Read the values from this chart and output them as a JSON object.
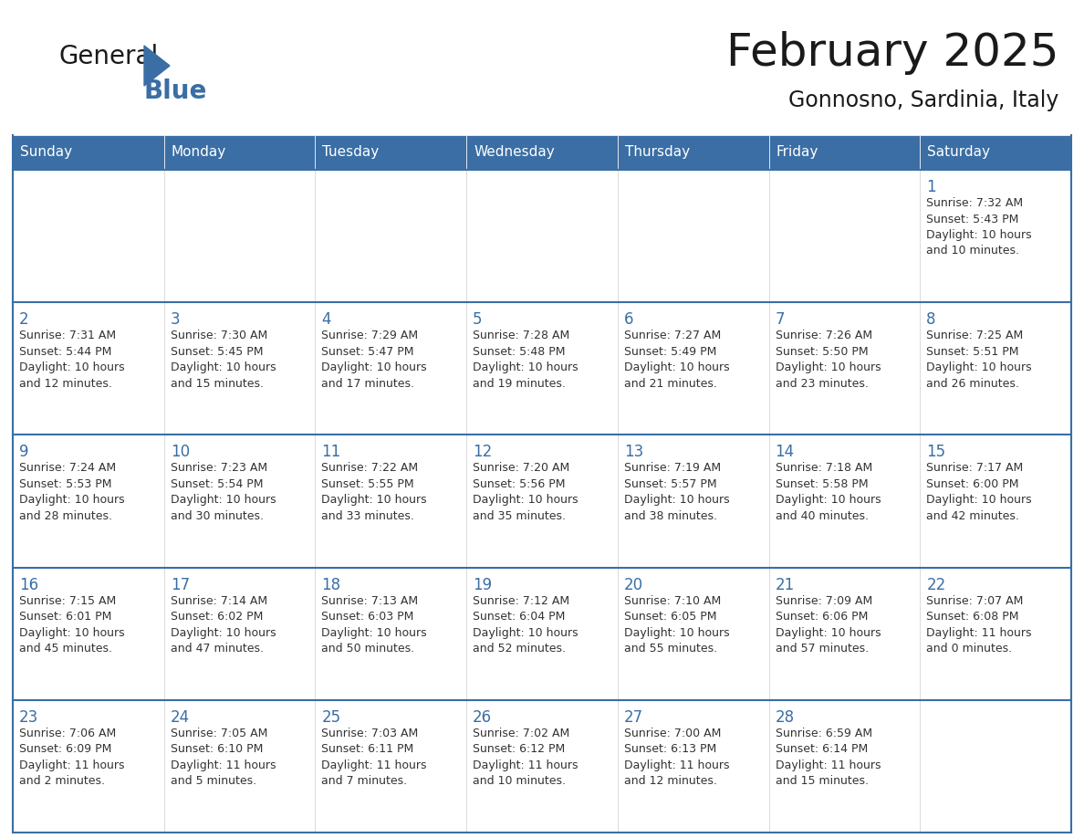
{
  "title": "February 2025",
  "subtitle": "Gonnosno, Sardinia, Italy",
  "header_bg": "#3A6EA5",
  "header_text_color": "#FFFFFF",
  "cell_bg": "#FFFFFF",
  "border_color": "#3A6EA5",
  "separator_color": "#3A6EA5",
  "outer_border_color": "#3A6EA5",
  "day_names": [
    "Sunday",
    "Monday",
    "Tuesday",
    "Wednesday",
    "Thursday",
    "Friday",
    "Saturday"
  ],
  "title_color": "#1a1a1a",
  "subtitle_color": "#1a1a1a",
  "day_number_color": "#3A6EA5",
  "info_color": "#333333",
  "logo_general_color": "#1a1a1a",
  "logo_blue_color": "#3A6EA5",
  "logo_triangle_color": "#3A6EA5",
  "weeks": [
    [
      {
        "day": "",
        "info": ""
      },
      {
        "day": "",
        "info": ""
      },
      {
        "day": "",
        "info": ""
      },
      {
        "day": "",
        "info": ""
      },
      {
        "day": "",
        "info": ""
      },
      {
        "day": "",
        "info": ""
      },
      {
        "day": "1",
        "info": "Sunrise: 7:32 AM\nSunset: 5:43 PM\nDaylight: 10 hours\nand 10 minutes."
      }
    ],
    [
      {
        "day": "2",
        "info": "Sunrise: 7:31 AM\nSunset: 5:44 PM\nDaylight: 10 hours\nand 12 minutes."
      },
      {
        "day": "3",
        "info": "Sunrise: 7:30 AM\nSunset: 5:45 PM\nDaylight: 10 hours\nand 15 minutes."
      },
      {
        "day": "4",
        "info": "Sunrise: 7:29 AM\nSunset: 5:47 PM\nDaylight: 10 hours\nand 17 minutes."
      },
      {
        "day": "5",
        "info": "Sunrise: 7:28 AM\nSunset: 5:48 PM\nDaylight: 10 hours\nand 19 minutes."
      },
      {
        "day": "6",
        "info": "Sunrise: 7:27 AM\nSunset: 5:49 PM\nDaylight: 10 hours\nand 21 minutes."
      },
      {
        "day": "7",
        "info": "Sunrise: 7:26 AM\nSunset: 5:50 PM\nDaylight: 10 hours\nand 23 minutes."
      },
      {
        "day": "8",
        "info": "Sunrise: 7:25 AM\nSunset: 5:51 PM\nDaylight: 10 hours\nand 26 minutes."
      }
    ],
    [
      {
        "day": "9",
        "info": "Sunrise: 7:24 AM\nSunset: 5:53 PM\nDaylight: 10 hours\nand 28 minutes."
      },
      {
        "day": "10",
        "info": "Sunrise: 7:23 AM\nSunset: 5:54 PM\nDaylight: 10 hours\nand 30 minutes."
      },
      {
        "day": "11",
        "info": "Sunrise: 7:22 AM\nSunset: 5:55 PM\nDaylight: 10 hours\nand 33 minutes."
      },
      {
        "day": "12",
        "info": "Sunrise: 7:20 AM\nSunset: 5:56 PM\nDaylight: 10 hours\nand 35 minutes."
      },
      {
        "day": "13",
        "info": "Sunrise: 7:19 AM\nSunset: 5:57 PM\nDaylight: 10 hours\nand 38 minutes."
      },
      {
        "day": "14",
        "info": "Sunrise: 7:18 AM\nSunset: 5:58 PM\nDaylight: 10 hours\nand 40 minutes."
      },
      {
        "day": "15",
        "info": "Sunrise: 7:17 AM\nSunset: 6:00 PM\nDaylight: 10 hours\nand 42 minutes."
      }
    ],
    [
      {
        "day": "16",
        "info": "Sunrise: 7:15 AM\nSunset: 6:01 PM\nDaylight: 10 hours\nand 45 minutes."
      },
      {
        "day": "17",
        "info": "Sunrise: 7:14 AM\nSunset: 6:02 PM\nDaylight: 10 hours\nand 47 minutes."
      },
      {
        "day": "18",
        "info": "Sunrise: 7:13 AM\nSunset: 6:03 PM\nDaylight: 10 hours\nand 50 minutes."
      },
      {
        "day": "19",
        "info": "Sunrise: 7:12 AM\nSunset: 6:04 PM\nDaylight: 10 hours\nand 52 minutes."
      },
      {
        "day": "20",
        "info": "Sunrise: 7:10 AM\nSunset: 6:05 PM\nDaylight: 10 hours\nand 55 minutes."
      },
      {
        "day": "21",
        "info": "Sunrise: 7:09 AM\nSunset: 6:06 PM\nDaylight: 10 hours\nand 57 minutes."
      },
      {
        "day": "22",
        "info": "Sunrise: 7:07 AM\nSunset: 6:08 PM\nDaylight: 11 hours\nand 0 minutes."
      }
    ],
    [
      {
        "day": "23",
        "info": "Sunrise: 7:06 AM\nSunset: 6:09 PM\nDaylight: 11 hours\nand 2 minutes."
      },
      {
        "day": "24",
        "info": "Sunrise: 7:05 AM\nSunset: 6:10 PM\nDaylight: 11 hours\nand 5 minutes."
      },
      {
        "day": "25",
        "info": "Sunrise: 7:03 AM\nSunset: 6:11 PM\nDaylight: 11 hours\nand 7 minutes."
      },
      {
        "day": "26",
        "info": "Sunrise: 7:02 AM\nSunset: 6:12 PM\nDaylight: 11 hours\nand 10 minutes."
      },
      {
        "day": "27",
        "info": "Sunrise: 7:00 AM\nSunset: 6:13 PM\nDaylight: 11 hours\nand 12 minutes."
      },
      {
        "day": "28",
        "info": "Sunrise: 6:59 AM\nSunset: 6:14 PM\nDaylight: 11 hours\nand 15 minutes."
      },
      {
        "day": "",
        "info": ""
      }
    ]
  ]
}
